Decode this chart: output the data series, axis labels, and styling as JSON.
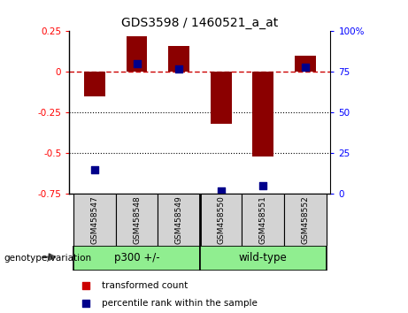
{
  "title": "GDS3598 / 1460521_a_at",
  "samples": [
    "GSM458547",
    "GSM458548",
    "GSM458549",
    "GSM458550",
    "GSM458551",
    "GSM458552"
  ],
  "transformed_count": [
    -0.15,
    0.22,
    0.16,
    -0.32,
    -0.52,
    0.1
  ],
  "percentile_rank": [
    15,
    80,
    77,
    2,
    5,
    78
  ],
  "ylim_left": [
    -0.75,
    0.25
  ],
  "ylim_right": [
    0,
    100
  ],
  "left_ticks": [
    0.25,
    0,
    -0.25,
    -0.5,
    -0.75
  ],
  "right_ticks": [
    100,
    75,
    50,
    25,
    0
  ],
  "groups": [
    {
      "label": "p300 +/-",
      "indices": [
        0,
        1,
        2
      ],
      "color": "#90EE90"
    },
    {
      "label": "wild-type",
      "indices": [
        3,
        4,
        5
      ],
      "color": "#90EE90"
    }
  ],
  "bar_color": "#8B0000",
  "dot_color": "#00008B",
  "bar_width": 0.5,
  "background_color": "#ffffff",
  "plot_bg_color": "#ffffff",
  "hline_color": "#CC0000",
  "genotype_label": "genotype/variation",
  "legend_items": [
    {
      "label": "transformed count",
      "color": "#CC0000"
    },
    {
      "label": "percentile rank within the sample",
      "color": "#00008B"
    }
  ]
}
